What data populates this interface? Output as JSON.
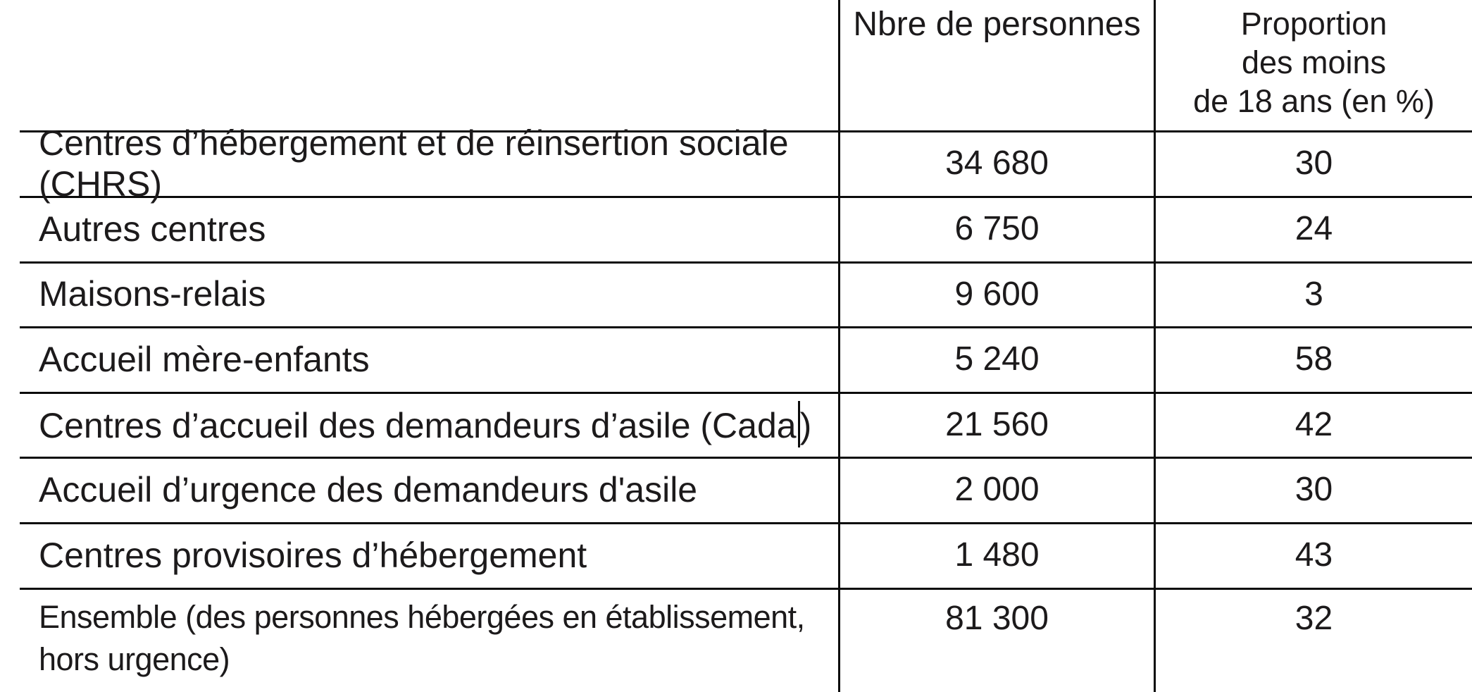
{
  "table": {
    "header": {
      "col_persons": "Nbre de personnes",
      "col_proportion_lines": [
        "Proportion",
        "des moins",
        "de 18 ans (en %)"
      ]
    },
    "rows": [
      {
        "label": "Centres d’hébergement et de réinsertion sociale (CHRS)",
        "persons": "34 680",
        "proportion": "30"
      },
      {
        "label": "Autres centres",
        "persons": "6 750",
        "proportion": "24"
      },
      {
        "label": "Maisons-relais",
        "persons": "9 600",
        "proportion": "3"
      },
      {
        "label": "Accueil mère-enfants",
        "persons": "5 240",
        "proportion": "58"
      },
      {
        "label": "Centres d’accueil des demandeurs d’asile (Cada",
        "label_suffix": ")",
        "persons": "21 560",
        "proportion": "42"
      },
      {
        "label": "Accueil d’urgence des demandeurs d'asile",
        "persons": "2 000",
        "proportion": "30"
      },
      {
        "label": "Centres provisoires d’hébergement",
        "persons": "1 480",
        "proportion": "43"
      },
      {
        "label": "Ensemble (des personnes hébergées en établissement,",
        "label_line2": "hors urgence)",
        "persons": "81 300",
        "proportion": "32"
      }
    ],
    "colors": {
      "text": "#1c1a1b",
      "line": "#0b0b0b",
      "background": "#ffffff"
    }
  }
}
